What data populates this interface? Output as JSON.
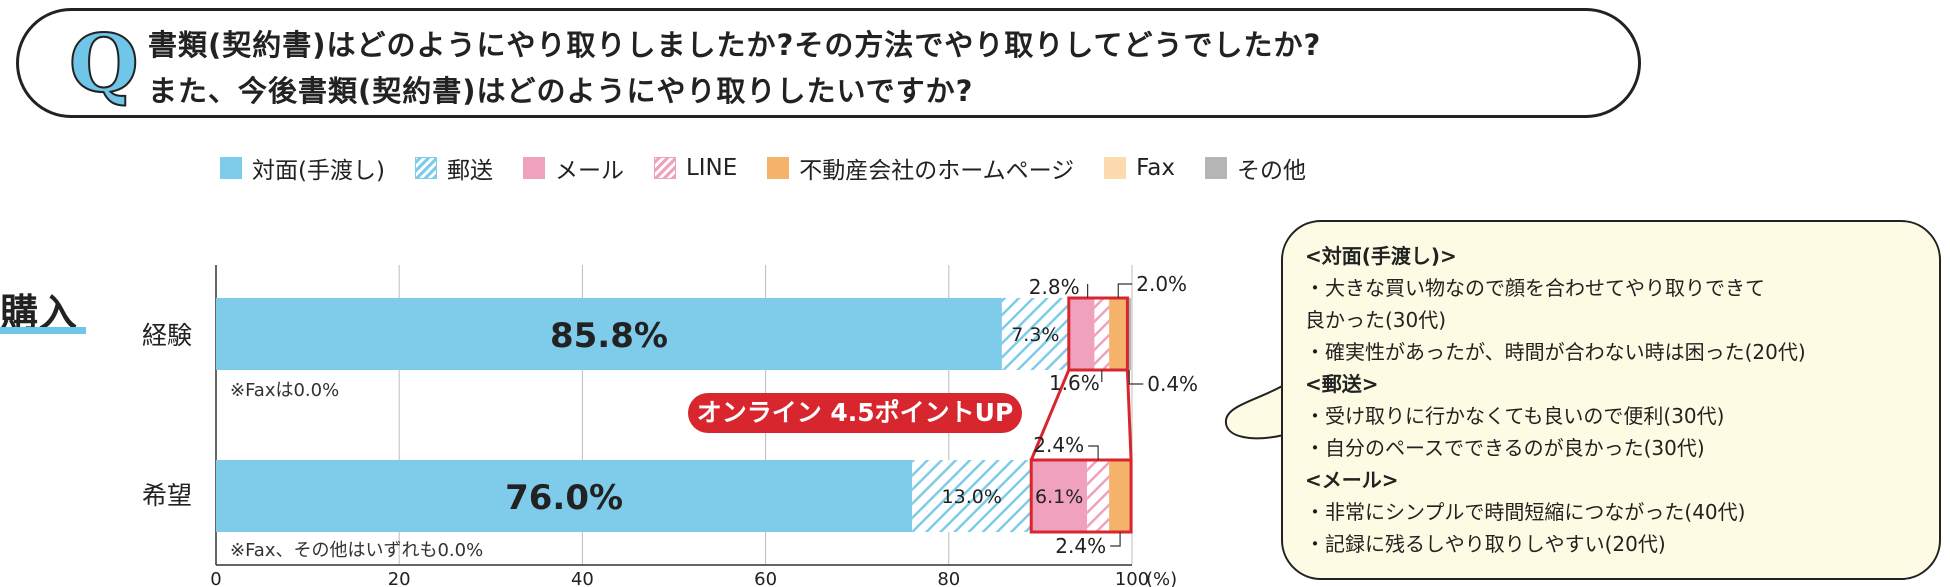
{
  "question": {
    "mark": "Q",
    "line1": "書類(契約書)はどのようにやり取りしましたか?その方法でやり取りしてどうでしたか?",
    "line2": "また、今後書類(契約書)はどのようにやり取りしたいですか?"
  },
  "section_label": "購入",
  "chart_data": {
    "type": "bar",
    "orientation": "horizontal",
    "stacked": true,
    "categories": [
      "経験",
      "希望"
    ],
    "series": [
      {
        "name": "対面(手渡し)",
        "values": [
          85.8,
          76.0
        ],
        "color": "#7fcbea",
        "pattern": "solid"
      },
      {
        "name": "郵送",
        "values": [
          7.3,
          13.0
        ],
        "color": "#7fcbea",
        "pattern": "hatch"
      },
      {
        "name": "メール",
        "values": [
          2.8,
          6.1
        ],
        "color": "#f0a1bd",
        "pattern": "solid"
      },
      {
        "name": "LINE",
        "values": [
          1.6,
          2.4
        ],
        "color": "#f0a1bd",
        "pattern": "hatch"
      },
      {
        "name": "不動産会社のホームページ",
        "values": [
          2.0,
          2.4
        ],
        "color": "#f5b26b",
        "pattern": "solid"
      },
      {
        "name": "Fax",
        "values": [
          0.0,
          0.0
        ],
        "color": "#fdd9ae",
        "pattern": "solid"
      },
      {
        "name": "その他",
        "values": [
          0.4,
          0.0
        ],
        "color": "#b5b5b5",
        "pattern": "solid"
      }
    ],
    "xlim": [
      0,
      100
    ],
    "xticks": [
      "0",
      "20",
      "40",
      "60",
      "80",
      "100"
    ],
    "x_unit": "(%)",
    "grid": true,
    "bar_labels": {
      "row0": {
        "main": "85.8%",
        "postal": "7.3%",
        "mail": "2.8%",
        "line": "1.6%",
        "hp": "2.0%",
        "other": "0.4%"
      },
      "row1": {
        "main": "76.0%",
        "postal": "13.0%",
        "mail": "6.1%",
        "line": "2.4%",
        "hp": "2.4%"
      }
    },
    "notes": [
      "※Faxは0.0%",
      "※Fax、その他はいずれも0.0%"
    ],
    "annotation": "オンライン 4.5ポイントUP"
  },
  "comments": [
    {
      "type": "head",
      "text": "<対面(手渡し)>"
    },
    {
      "type": "item",
      "text": "・大きな買い物なので顔を合わせてやり取りできて"
    },
    {
      "type": "cont",
      "text": "良かった(30代)"
    },
    {
      "type": "item",
      "text": "・確実性があったが、時間が合わない時は困った(20代)"
    },
    {
      "type": "head",
      "text": "<郵送>"
    },
    {
      "type": "item",
      "text": "・受け取りに行かなくても良いので便利(30代)"
    },
    {
      "type": "item",
      "text": "・自分のペースでできるのが良かった(30代)"
    },
    {
      "type": "head",
      "text": "<メール>"
    },
    {
      "type": "item",
      "text": "・非常にシンプルで時間短縮につながった(40代)"
    },
    {
      "type": "item",
      "text": "・記録に残るしやり取りしやすい(20代)"
    }
  ]
}
